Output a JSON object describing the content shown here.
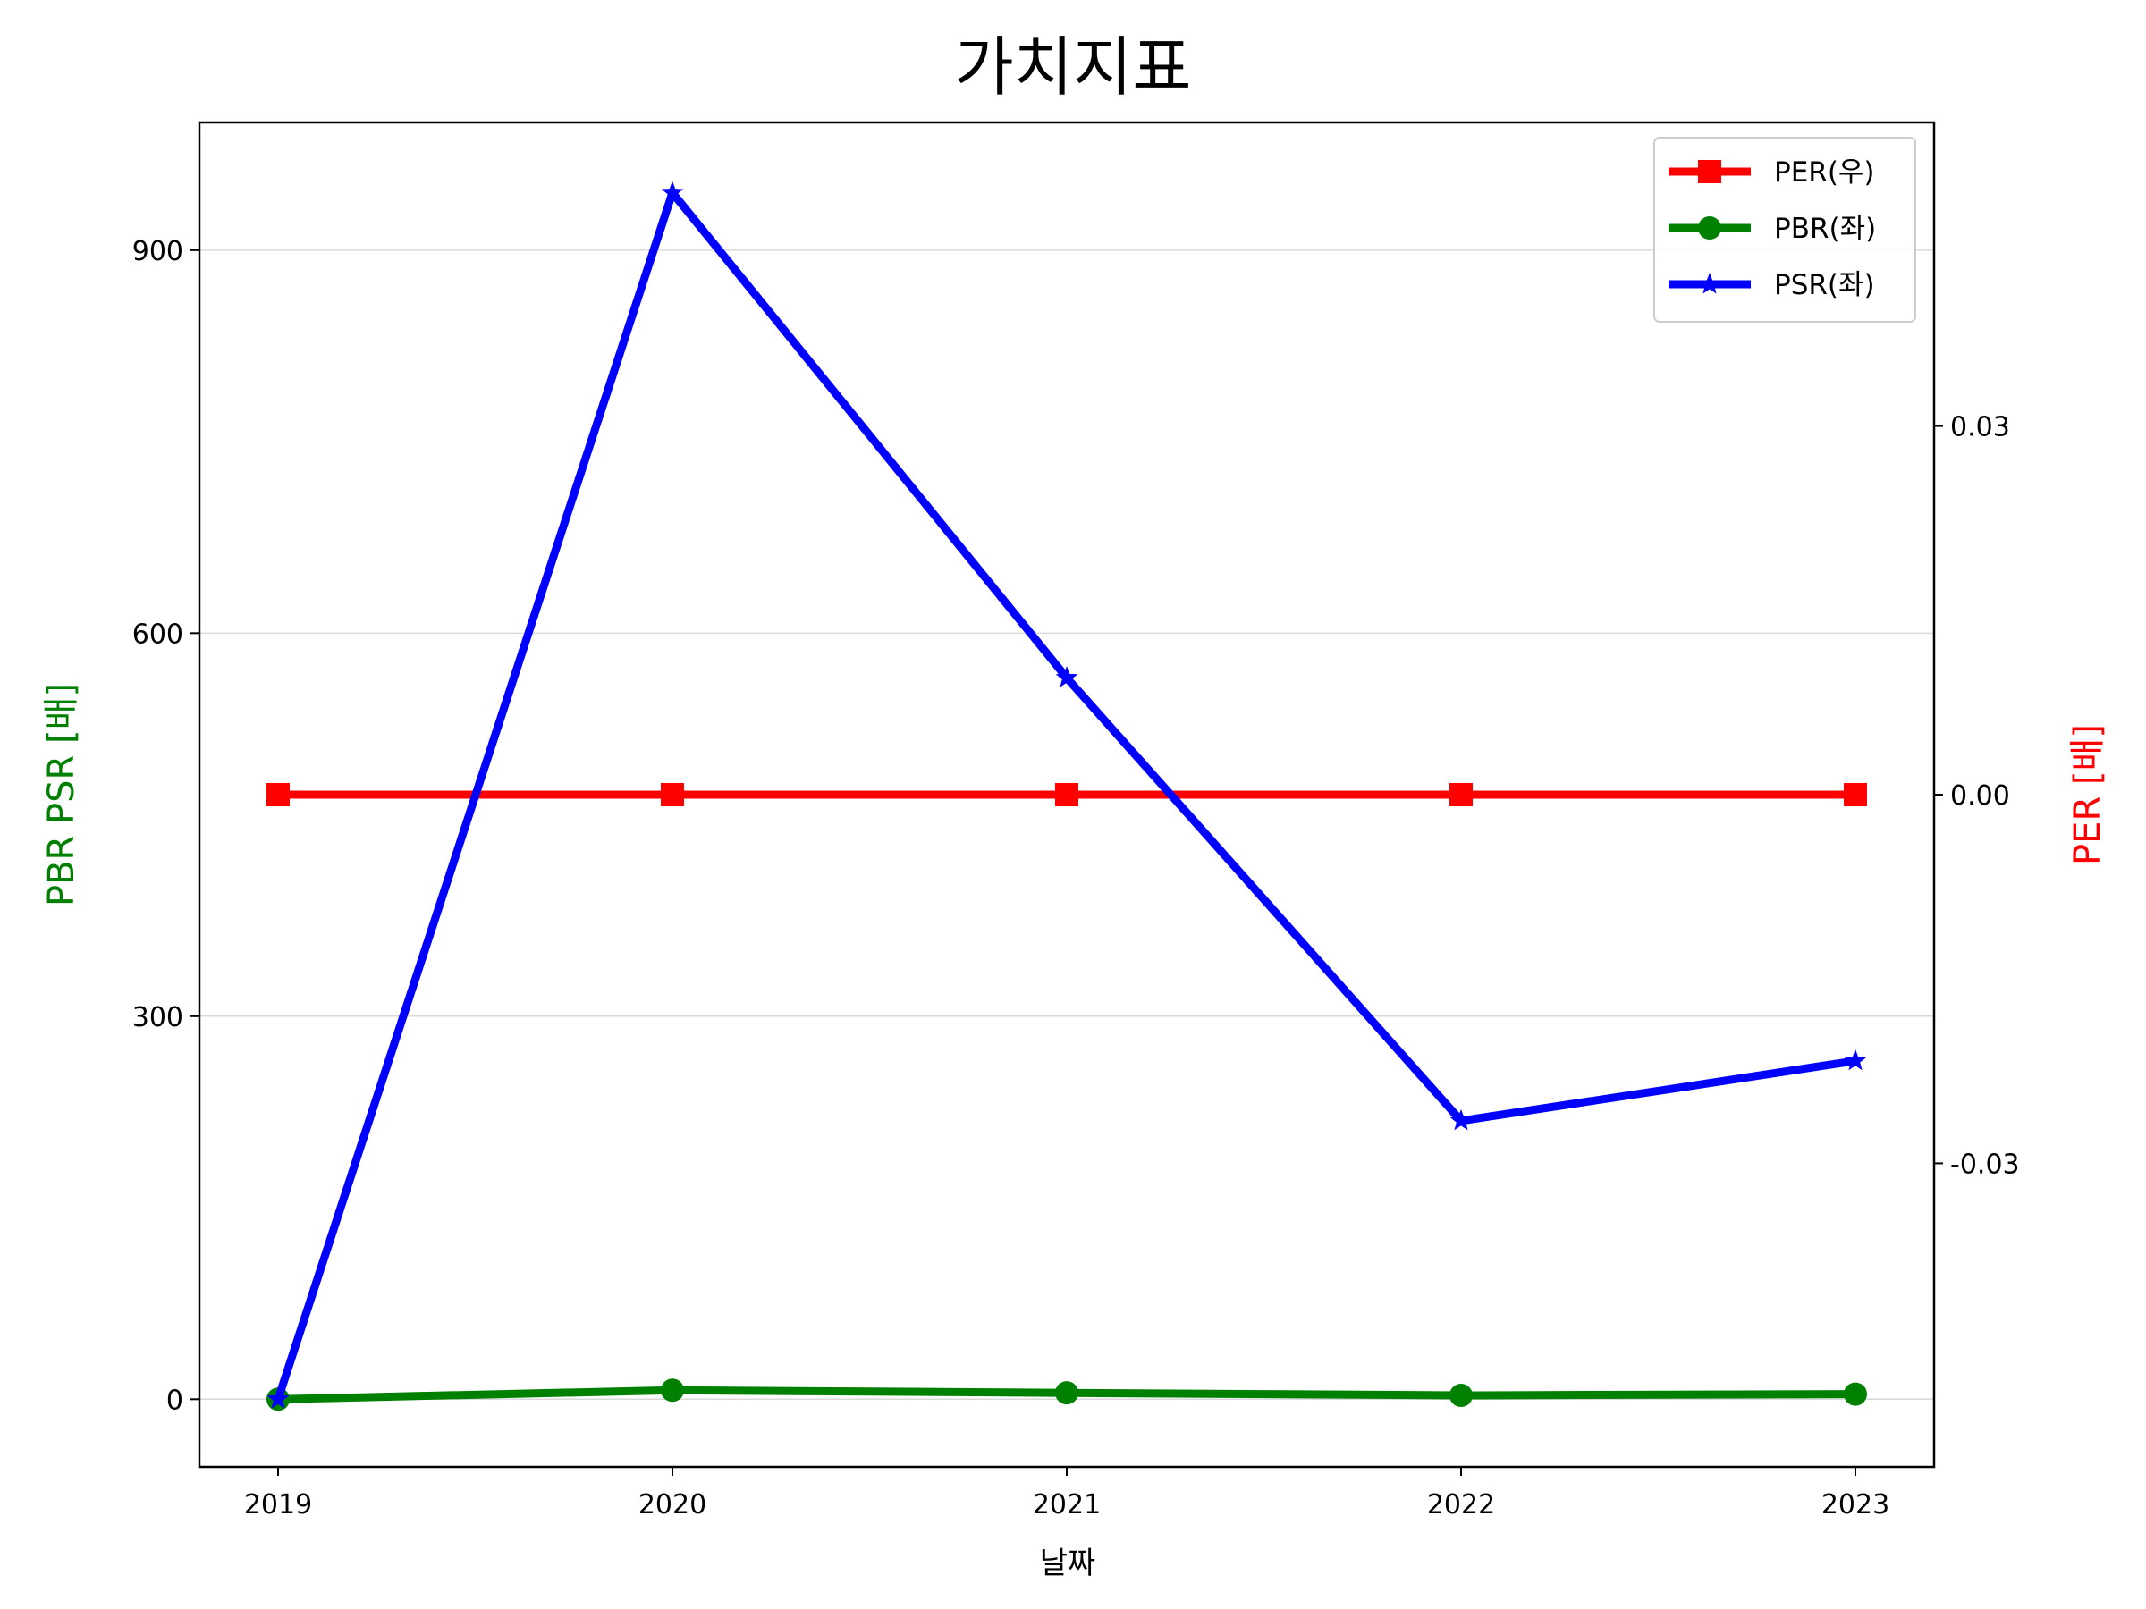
{
  "chart_data": {
    "type": "line",
    "title": "가치지표",
    "xlabel": "날짜",
    "ylabel_left": "PBR PSR [배]",
    "ylabel_right": "PER [배]",
    "ylabel_left_color": "#008000",
    "ylabel_right_color": "#ff0000",
    "categories": [
      "2019",
      "2020",
      "2021",
      "2022",
      "2023"
    ],
    "ylim_left": [
      -53,
      1000
    ],
    "ylim_right": [
      -0.0547,
      0.0547
    ],
    "yticks_left": [
      {
        "value": 0,
        "label": "0"
      },
      {
        "value": 300,
        "label": "300"
      },
      {
        "value": 600,
        "label": "600"
      },
      {
        "value": 900,
        "label": "900"
      }
    ],
    "yticks_right": [
      {
        "value": -0.03,
        "label": "-0.03"
      },
      {
        "value": 0.0,
        "label": "0.00"
      },
      {
        "value": 0.03,
        "label": "0.03"
      }
    ],
    "grid": "horizontal",
    "legend_position": "top-right",
    "series": [
      {
        "name": "PER(우)",
        "axis": "right",
        "color": "#ff0000",
        "marker": "square",
        "values": [
          0,
          0,
          0,
          0,
          0
        ]
      },
      {
        "name": "PBR(좌)",
        "axis": "left",
        "color": "#008000",
        "marker": "circle",
        "values": [
          0,
          7,
          5,
          3,
          4
        ]
      },
      {
        "name": "PSR(좌)",
        "axis": "left",
        "color": "#0000ff",
        "marker": "star",
        "values": [
          0,
          945,
          565,
          218,
          265
        ]
      }
    ]
  }
}
